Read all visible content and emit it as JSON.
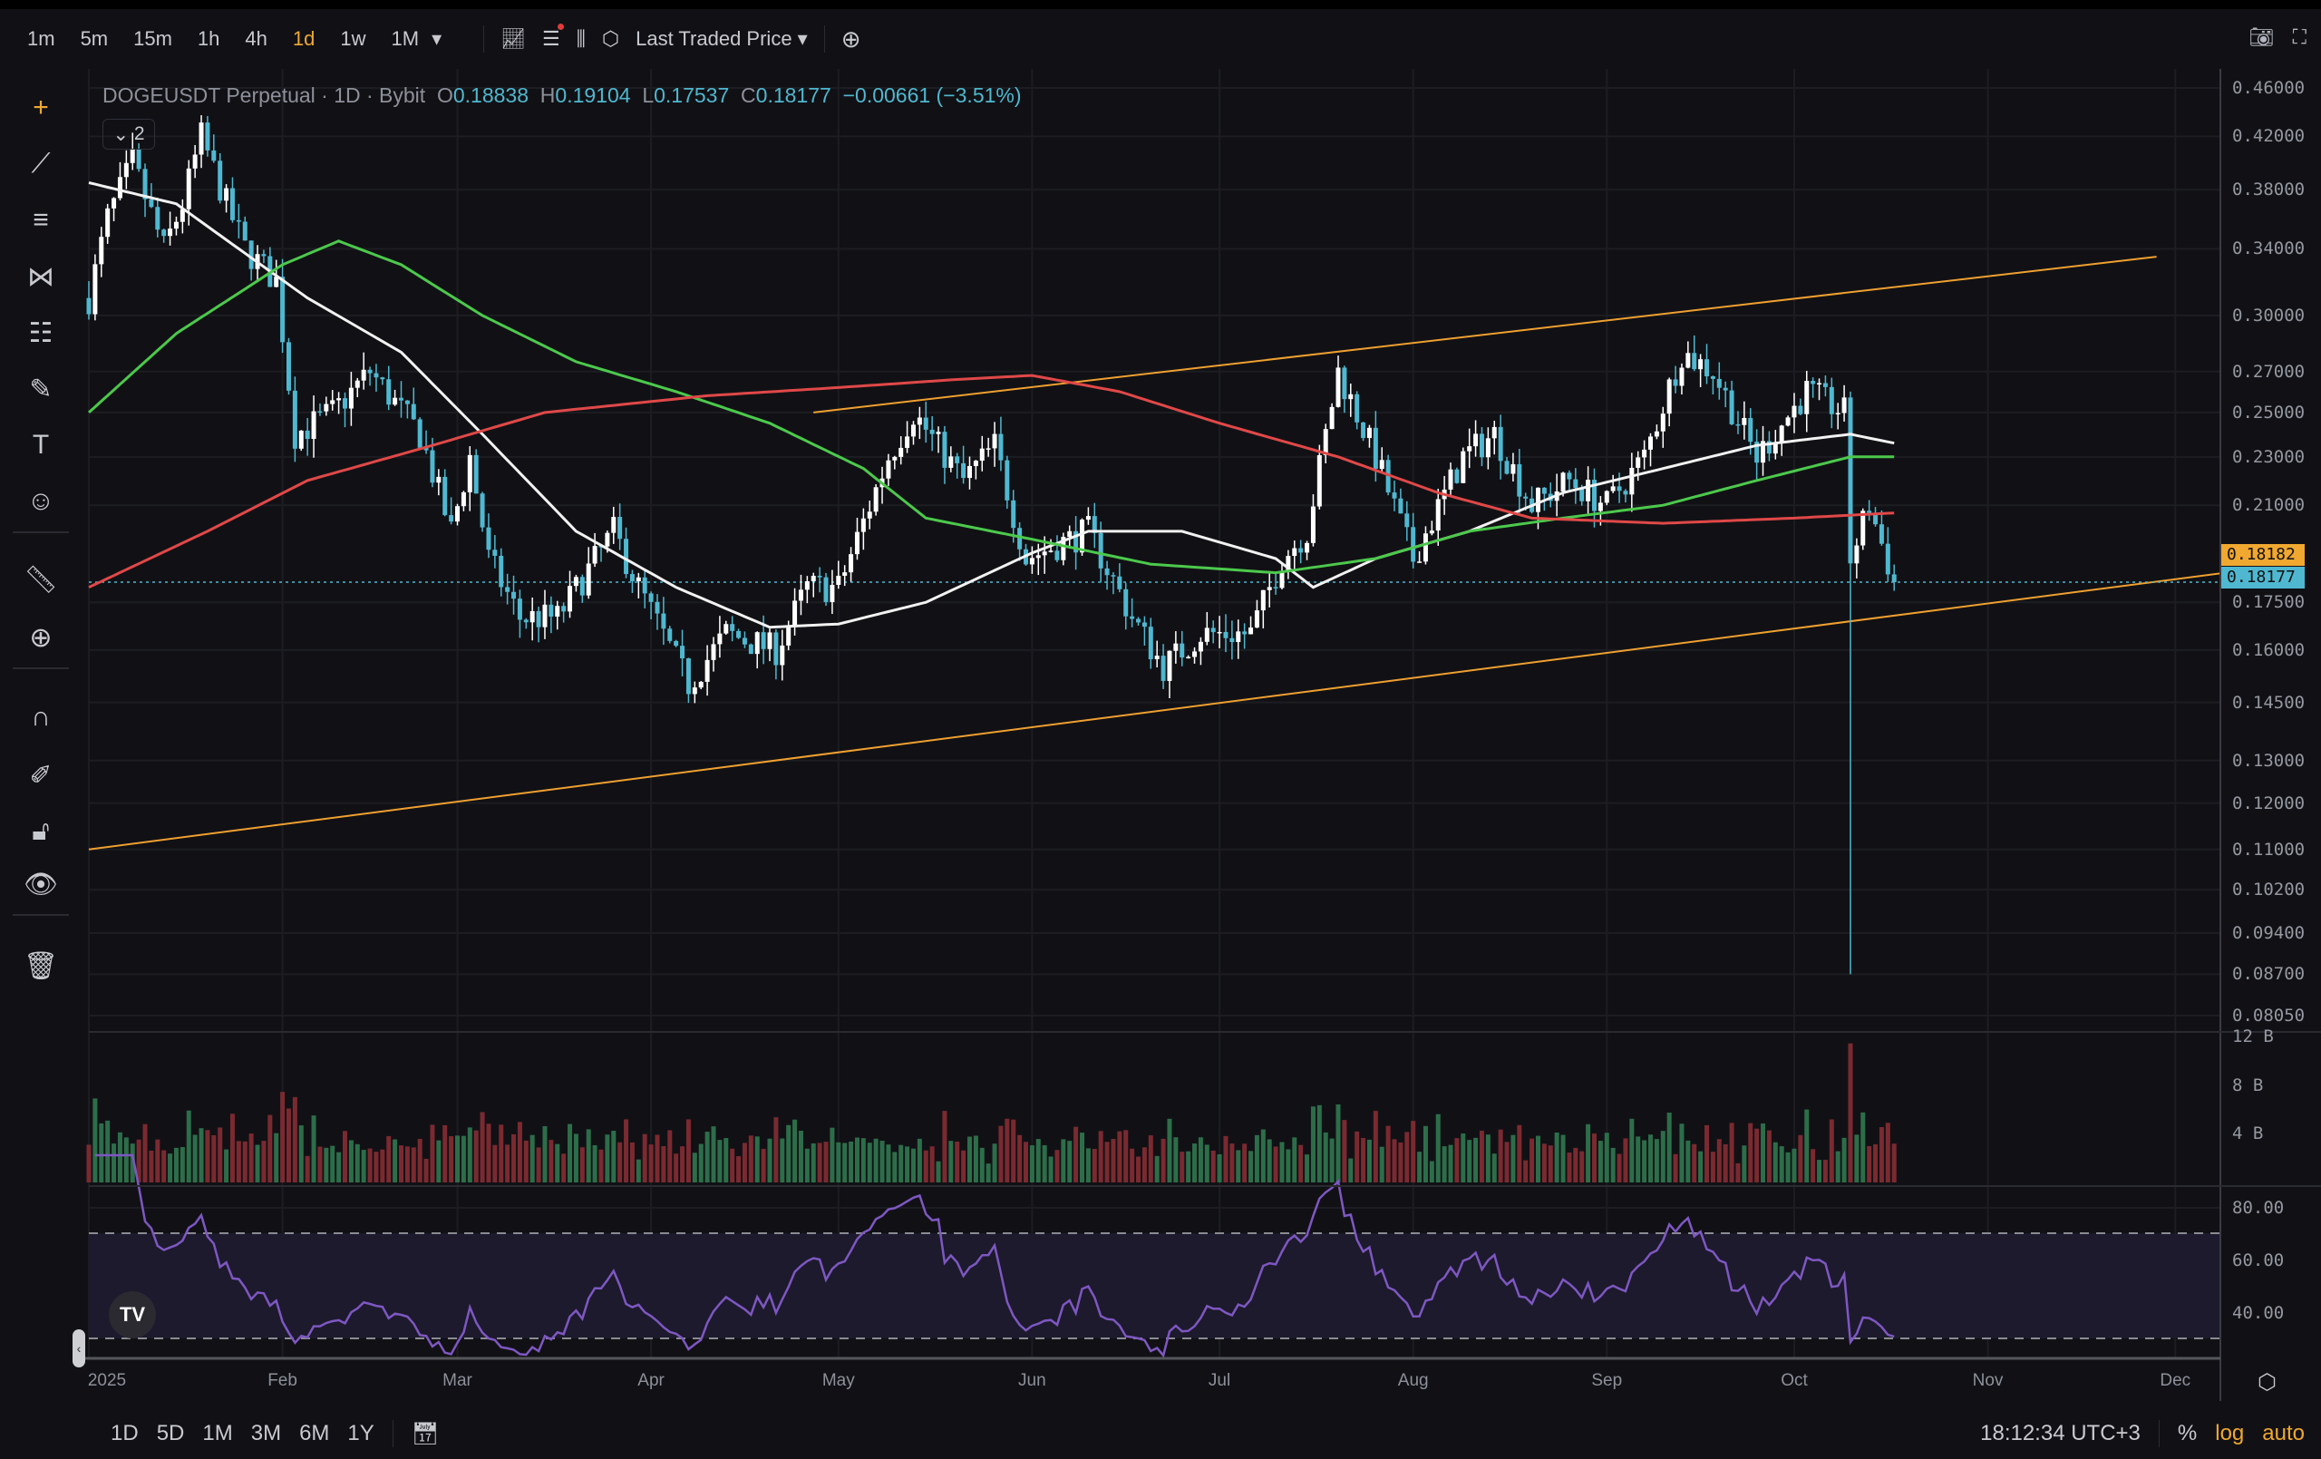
{
  "toolbar": {
    "timeframes": [
      "1m",
      "5m",
      "15m",
      "1h",
      "4h",
      "1d",
      "1w",
      "1M"
    ],
    "active_timeframe": "1d",
    "price_source": "Last Traded Price"
  },
  "legend": {
    "symbol": "DOGEUSDT Perpetual · 1D · Bybit",
    "o_label": "O",
    "o": "0.18838",
    "h_label": "H",
    "h": "0.19104",
    "l_label": "L",
    "l": "0.17537",
    "c_label": "C",
    "c": "0.18177",
    "change": "−0.00661 (−3.51%)",
    "indicators_collapsed": "2"
  },
  "price_axis": {
    "labels": [
      "0.46000",
      "0.42000",
      "0.38000",
      "0.34000",
      "0.30000",
      "0.27000",
      "0.25000",
      "0.23000",
      "0.21000",
      "0.17500",
      "0.16000",
      "0.14500",
      "0.13000",
      "0.12000",
      "0.11000",
      "0.10200",
      "0.09400",
      "0.08700",
      "0.08050"
    ],
    "mark_price_tag": "0.18182",
    "last_price_tag": "0.18177"
  },
  "volume_axis": {
    "labels": [
      "12 B",
      "8 B",
      "4 B"
    ]
  },
  "rsi_axis": {
    "labels": [
      "80.00",
      "60.00",
      "40.00"
    ]
  },
  "time_axis": {
    "labels": [
      "2025",
      "Feb",
      "Mar",
      "Apr",
      "May",
      "Jun",
      "Jul",
      "Aug",
      "Sep",
      "Oct",
      "Nov",
      "Dec"
    ],
    "days": [
      0,
      31,
      59,
      90,
      120,
      151,
      181,
      212,
      243,
      273,
      304,
      334
    ]
  },
  "bottom": {
    "ranges": [
      "1D",
      "5D",
      "1M",
      "3M",
      "6M",
      "1Y"
    ],
    "clock": "18:12:34 UTC+3",
    "percent": "%",
    "log": "log",
    "auto": "auto"
  },
  "colors": {
    "up": "#ffffff",
    "down": "#4fb8d0",
    "ma_white": "#f2f2f2",
    "ma_green": "#4cc94c",
    "ma_red": "#e04848",
    "trend": "#f0a030",
    "rsi": "#7e57c2"
  },
  "chart_data": {
    "type": "candlestick",
    "x_unit": "days since 2025-01-01",
    "y_scale": "log",
    "ylim": [
      0.0805,
      0.46
    ],
    "price_anchors": [
      [
        0,
        0.31
      ],
      [
        3,
        0.36
      ],
      [
        7,
        0.4
      ],
      [
        12,
        0.34
      ],
      [
        15,
        0.37
      ],
      [
        18,
        0.42
      ],
      [
        22,
        0.37
      ],
      [
        25,
        0.34
      ],
      [
        30,
        0.32
      ],
      [
        33,
        0.24
      ],
      [
        39,
        0.25
      ],
      [
        45,
        0.27
      ],
      [
        53,
        0.24
      ],
      [
        58,
        0.2
      ],
      [
        61,
        0.23
      ],
      [
        64,
        0.19
      ],
      [
        69,
        0.17
      ],
      [
        75,
        0.17
      ],
      [
        84,
        0.2
      ],
      [
        88,
        0.18
      ],
      [
        96,
        0.15
      ],
      [
        102,
        0.165
      ],
      [
        110,
        0.16
      ],
      [
        115,
        0.18
      ],
      [
        120,
        0.18
      ],
      [
        128,
        0.23
      ],
      [
        132,
        0.25
      ],
      [
        140,
        0.22
      ],
      [
        145,
        0.235
      ],
      [
        150,
        0.19
      ],
      [
        160,
        0.2
      ],
      [
        167,
        0.17
      ],
      [
        172,
        0.155
      ],
      [
        178,
        0.165
      ],
      [
        186,
        0.165
      ],
      [
        191,
        0.19
      ],
      [
        195,
        0.2
      ],
      [
        200,
        0.27
      ],
      [
        206,
        0.23
      ],
      [
        212,
        0.19
      ],
      [
        220,
        0.23
      ],
      [
        225,
        0.24
      ],
      [
        231,
        0.21
      ],
      [
        237,
        0.22
      ],
      [
        243,
        0.21
      ],
      [
        249,
        0.23
      ],
      [
        255,
        0.28
      ],
      [
        260,
        0.27
      ],
      [
        267,
        0.23
      ],
      [
        275,
        0.26
      ],
      [
        281,
        0.25
      ],
      [
        282,
        0.19
      ],
      [
        285,
        0.21
      ],
      [
        289,
        0.18177
      ]
    ],
    "flash_crash": {
      "day": 282,
      "low": 0.087
    },
    "ma_white": [
      [
        0,
        0.385
      ],
      [
        14,
        0.37
      ],
      [
        24,
        0.34
      ],
      [
        35,
        0.31
      ],
      [
        50,
        0.28
      ],
      [
        63,
        0.24
      ],
      [
        78,
        0.2
      ],
      [
        94,
        0.18
      ],
      [
        109,
        0.167
      ],
      [
        120,
        0.168
      ],
      [
        134,
        0.175
      ],
      [
        151,
        0.192
      ],
      [
        160,
        0.2
      ],
      [
        175,
        0.2
      ],
      [
        190,
        0.19
      ],
      [
        196,
        0.18
      ],
      [
        206,
        0.19
      ],
      [
        221,
        0.2
      ],
      [
        236,
        0.215
      ],
      [
        252,
        0.225
      ],
      [
        267,
        0.235
      ],
      [
        282,
        0.24
      ],
      [
        289,
        0.236
      ]
    ],
    "ma_green": [
      [
        0,
        0.25
      ],
      [
        14,
        0.29
      ],
      [
        31,
        0.33
      ],
      [
        40,
        0.345
      ],
      [
        50,
        0.33
      ],
      [
        63,
        0.3
      ],
      [
        78,
        0.275
      ],
      [
        94,
        0.26
      ],
      [
        109,
        0.245
      ],
      [
        124,
        0.225
      ],
      [
        134,
        0.205
      ],
      [
        151,
        0.197
      ],
      [
        170,
        0.188
      ],
      [
        190,
        0.185
      ],
      [
        206,
        0.19
      ],
      [
        221,
        0.2
      ],
      [
        236,
        0.205
      ],
      [
        252,
        0.21
      ],
      [
        267,
        0.22
      ],
      [
        282,
        0.23
      ],
      [
        289,
        0.23
      ]
    ],
    "ma_red": [
      [
        0,
        0.18
      ],
      [
        19,
        0.2
      ],
      [
        35,
        0.22
      ],
      [
        55,
        0.235
      ],
      [
        73,
        0.25
      ],
      [
        99,
        0.258
      ],
      [
        120,
        0.262
      ],
      [
        139,
        0.266
      ],
      [
        151,
        0.268
      ],
      [
        165,
        0.26
      ],
      [
        181,
        0.245
      ],
      [
        200,
        0.23
      ],
      [
        216,
        0.215
      ],
      [
        231,
        0.205
      ],
      [
        252,
        0.203
      ],
      [
        273,
        0.205
      ],
      [
        289,
        0.207
      ]
    ],
    "trendline_lower": [
      [
        0,
        0.11
      ],
      [
        342,
        0.185
      ]
    ],
    "trendline_upper": [
      [
        116,
        0.25
      ],
      [
        331,
        0.335
      ]
    ],
    "volume_ylim_billions": [
      0,
      12
    ],
    "rsi_period": 14,
    "rsi_bands": [
      30,
      70
    ]
  }
}
